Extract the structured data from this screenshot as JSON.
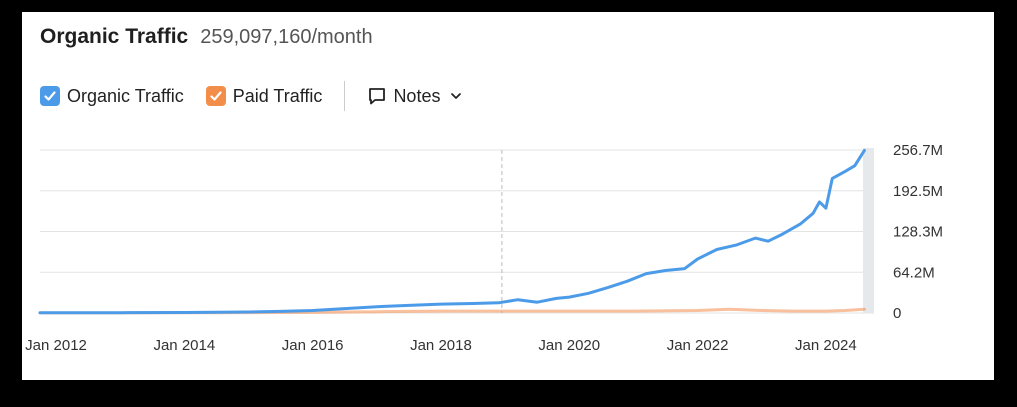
{
  "header": {
    "title": "Organic Traffic",
    "value": "259,097,160/month"
  },
  "legend": {
    "items": [
      {
        "label": "Organic Traffic",
        "color": "#4c9be8",
        "checked": true
      },
      {
        "label": "Paid Traffic",
        "color": "#f38d4a",
        "checked": true
      }
    ],
    "notes_label": "Notes"
  },
  "chart_data": {
    "type": "line",
    "x_tick_labels": [
      "Jan 2012",
      "Jan 2014",
      "Jan 2016",
      "Jan 2018",
      "Jan 2020",
      "Jan 2022",
      "Jan 2024"
    ],
    "y_tick_labels": [
      "0",
      "64.2M",
      "128.3M",
      "192.5M",
      "256.7M"
    ],
    "ylim": [
      0,
      256.7
    ],
    "xlim": [
      2011.75,
      2024.75
    ],
    "grid": true,
    "series": [
      {
        "name": "Organic Traffic",
        "color": "#4c9be8",
        "x": [
          2011.75,
          2013,
          2014,
          2015,
          2015.5,
          2016,
          2016.5,
          2017,
          2017.5,
          2018,
          2018.5,
          2018.9,
          2019.2,
          2019.5,
          2019.8,
          2020.0,
          2020.3,
          2020.6,
          2020.9,
          2021.2,
          2021.5,
          2021.8,
          2022.0,
          2022.3,
          2022.6,
          2022.9,
          2023.1,
          2023.3,
          2023.6,
          2023.8,
          2023.9,
          2024.0,
          2024.1,
          2024.3,
          2024.45,
          2024.6
        ],
        "y": [
          0.3,
          0.5,
          0.8,
          1.5,
          2.5,
          4,
          7,
          10,
          12,
          14,
          15,
          16,
          21,
          17,
          23,
          25,
          31,
          40,
          50,
          62,
          67,
          70,
          85,
          100,
          107,
          118,
          113,
          123,
          140,
          157,
          175,
          165,
          212,
          223,
          232,
          256
        ]
      },
      {
        "name": "Paid Traffic",
        "color": "#f38d4a",
        "x": [
          2011.75,
          2014,
          2016,
          2017,
          2018,
          2019,
          2020,
          2021,
          2022,
          2022.5,
          2023,
          2023.5,
          2024,
          2024.3,
          2024.6
        ],
        "y": [
          0.2,
          0.3,
          1,
          2,
          3,
          3,
          3,
          3,
          4,
          6,
          4,
          3,
          3,
          4,
          6
        ]
      }
    ]
  }
}
